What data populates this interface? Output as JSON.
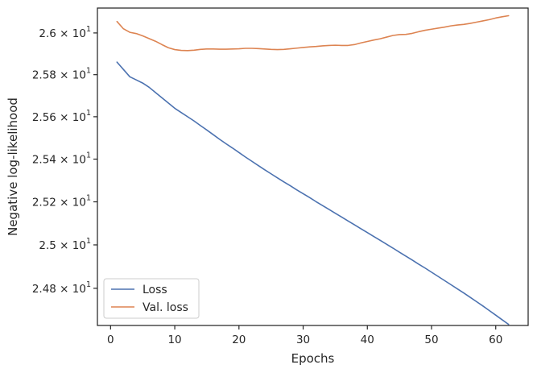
{
  "chart_data": {
    "type": "line",
    "title": "",
    "xlabel": "Epochs",
    "ylabel": "Negative log-likelihood",
    "yscale": "log",
    "xlim": [
      -2.05,
      65.05
    ],
    "ylim": [
      24.63,
      26.12
    ],
    "x_ticks": [
      0,
      10,
      20,
      30,
      40,
      50,
      60
    ],
    "y_ticks": [
      {
        "value": 24.8,
        "mantissa": "2.48",
        "base": "10",
        "exponent": "1"
      },
      {
        "value": 25.0,
        "mantissa": "2.5",
        "base": "10",
        "exponent": "1"
      },
      {
        "value": 25.2,
        "mantissa": "2.52",
        "base": "10",
        "exponent": "1"
      },
      {
        "value": 25.4,
        "mantissa": "2.54",
        "base": "10",
        "exponent": "1"
      },
      {
        "value": 25.6,
        "mantissa": "2.56",
        "base": "10",
        "exponent": "1"
      },
      {
        "value": 25.8,
        "mantissa": "2.58",
        "base": "10",
        "exponent": "1"
      },
      {
        "value": 26.0,
        "mantissa": "2.6",
        "base": "10",
        "exponent": "1"
      }
    ],
    "grid": false,
    "legend_position": "lower-left",
    "series": [
      {
        "name": "Loss",
        "color": "#4c72b0",
        "x": [
          1,
          2,
          3,
          4,
          5,
          6,
          7,
          8,
          9,
          10,
          11,
          12,
          13,
          14,
          15,
          16,
          17,
          18,
          19,
          20,
          21,
          22,
          23,
          24,
          25,
          26,
          27,
          28,
          29,
          30,
          31,
          32,
          33,
          34,
          35,
          36,
          37,
          38,
          39,
          40,
          41,
          42,
          43,
          44,
          45,
          46,
          47,
          48,
          49,
          50,
          51,
          52,
          53,
          54,
          55,
          56,
          57,
          58,
          59,
          60,
          61,
          62
        ],
        "y": [
          25.86,
          25.825,
          25.79,
          25.775,
          25.76,
          25.74,
          25.715,
          25.69,
          25.665,
          25.64,
          25.62,
          25.6,
          25.58,
          25.558,
          25.537,
          25.515,
          25.493,
          25.472,
          25.452,
          25.431,
          25.41,
          25.39,
          25.37,
          25.35,
          25.331,
          25.312,
          25.293,
          25.275,
          25.256,
          25.238,
          25.22,
          25.201,
          25.183,
          25.165,
          25.147,
          25.129,
          25.111,
          25.093,
          25.075,
          25.057,
          25.039,
          25.021,
          25.003,
          24.985,
          24.966,
          24.948,
          24.93,
          24.911,
          24.893,
          24.874,
          24.855,
          24.836,
          24.817,
          24.798,
          24.779,
          24.759,
          24.739,
          24.719,
          24.698,
          24.677,
          24.656,
          24.635
        ]
      },
      {
        "name": "Val. loss",
        "color": "#dd8452",
        "x": [
          1,
          2,
          3,
          4,
          5,
          6,
          7,
          8,
          9,
          10,
          11,
          12,
          13,
          14,
          15,
          16,
          17,
          18,
          19,
          20,
          21,
          22,
          23,
          24,
          25,
          26,
          27,
          28,
          29,
          30,
          31,
          32,
          33,
          34,
          35,
          36,
          37,
          38,
          39,
          40,
          41,
          42,
          43,
          44,
          45,
          46,
          47,
          48,
          49,
          50,
          51,
          52,
          53,
          54,
          55,
          56,
          57,
          58,
          59,
          60,
          61,
          62
        ],
        "y": [
          26.055,
          26.02,
          26.003,
          25.997,
          25.986,
          25.973,
          25.96,
          25.944,
          25.929,
          25.92,
          25.916,
          25.915,
          25.917,
          25.921,
          25.923,
          25.923,
          25.922,
          25.922,
          25.923,
          25.924,
          25.926,
          25.926,
          25.925,
          25.923,
          25.921,
          25.92,
          25.921,
          25.924,
          25.927,
          25.93,
          25.933,
          25.935,
          25.938,
          25.94,
          25.941,
          25.94,
          25.94,
          25.944,
          25.952,
          25.959,
          25.966,
          25.972,
          25.98,
          25.988,
          25.992,
          25.993,
          25.998,
          26.006,
          26.013,
          26.018,
          26.023,
          26.028,
          26.034,
          26.038,
          26.041,
          26.046,
          26.052,
          26.058,
          26.064,
          26.072,
          26.078,
          26.083
        ]
      }
    ]
  }
}
